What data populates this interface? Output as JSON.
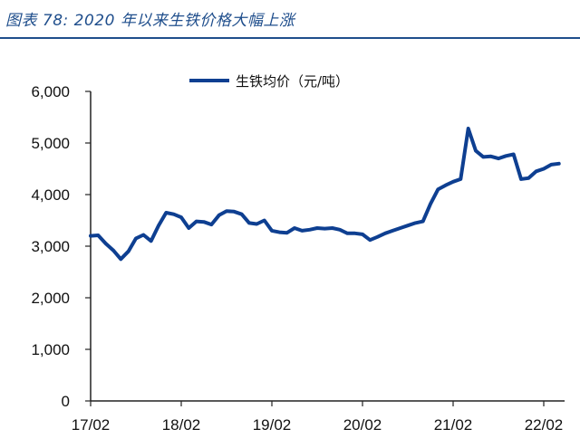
{
  "figure_title": "图表 78:  2020 年以来生铁价格大幅上涨",
  "colors": {
    "title": "#1f4e8c",
    "series": "#0e3f91",
    "axis": "#222222"
  },
  "chart_data": {
    "type": "line",
    "title": "",
    "xlabel": "",
    "ylabel": "",
    "ylim": [
      0,
      6000
    ],
    "y_ticks": [
      0,
      1000,
      2000,
      3000,
      4000,
      5000,
      6000
    ],
    "y_tick_labels": [
      "0",
      "1,000",
      "2,000",
      "3,000",
      "4,000",
      "5,000",
      "6,000"
    ],
    "x_tick_labels": [
      "17/02",
      "18/02",
      "19/02",
      "20/02",
      "21/02",
      "22/02"
    ],
    "grid": false,
    "legend": "top-center",
    "series": [
      {
        "name": "生铁均价（元/吨）",
        "points": [
          [
            "2017-02",
            3200
          ],
          [
            "2017-03",
            3210
          ],
          [
            "2017-04",
            3050
          ],
          [
            "2017-05",
            2920
          ],
          [
            "2017-06",
            2750
          ],
          [
            "2017-07",
            2900
          ],
          [
            "2017-08",
            3150
          ],
          [
            "2017-09",
            3220
          ],
          [
            "2017-10",
            3100
          ],
          [
            "2017-11",
            3400
          ],
          [
            "2017-12",
            3650
          ],
          [
            "2018-01",
            3620
          ],
          [
            "2018-02",
            3560
          ],
          [
            "2018-03",
            3350
          ],
          [
            "2018-04",
            3480
          ],
          [
            "2018-05",
            3470
          ],
          [
            "2018-06",
            3420
          ],
          [
            "2018-07",
            3600
          ],
          [
            "2018-08",
            3680
          ],
          [
            "2018-09",
            3670
          ],
          [
            "2018-10",
            3620
          ],
          [
            "2018-11",
            3450
          ],
          [
            "2018-12",
            3430
          ],
          [
            "2019-01",
            3500
          ],
          [
            "2019-02",
            3300
          ],
          [
            "2019-03",
            3270
          ],
          [
            "2019-04",
            3260
          ],
          [
            "2019-05",
            3350
          ],
          [
            "2019-06",
            3300
          ],
          [
            "2019-07",
            3320
          ],
          [
            "2019-08",
            3350
          ],
          [
            "2019-09",
            3340
          ],
          [
            "2019-10",
            3350
          ],
          [
            "2019-11",
            3320
          ],
          [
            "2019-12",
            3250
          ],
          [
            "2020-01",
            3250
          ],
          [
            "2020-02",
            3230
          ],
          [
            "2020-03",
            3120
          ],
          [
            "2020-04",
            3180
          ],
          [
            "2020-05",
            3250
          ],
          [
            "2020-06",
            3300
          ],
          [
            "2020-07",
            3350
          ],
          [
            "2020-08",
            3400
          ],
          [
            "2020-09",
            3450
          ],
          [
            "2020-10",
            3480
          ],
          [
            "2020-11",
            3820
          ],
          [
            "2020-12",
            4100
          ],
          [
            "2021-01",
            4180
          ],
          [
            "2021-02",
            4250
          ],
          [
            "2021-03",
            4300
          ],
          [
            "2021-04",
            5280
          ],
          [
            "2021-05",
            4850
          ],
          [
            "2021-06",
            4730
          ],
          [
            "2021-07",
            4740
          ],
          [
            "2021-08",
            4700
          ],
          [
            "2021-09",
            4750
          ],
          [
            "2021-10",
            4780
          ],
          [
            "2021-11",
            4300
          ],
          [
            "2021-12",
            4320
          ],
          [
            "2022-01",
            4450
          ],
          [
            "2022-02",
            4500
          ],
          [
            "2022-03",
            4580
          ],
          [
            "2022-04",
            4600
          ]
        ]
      }
    ]
  }
}
